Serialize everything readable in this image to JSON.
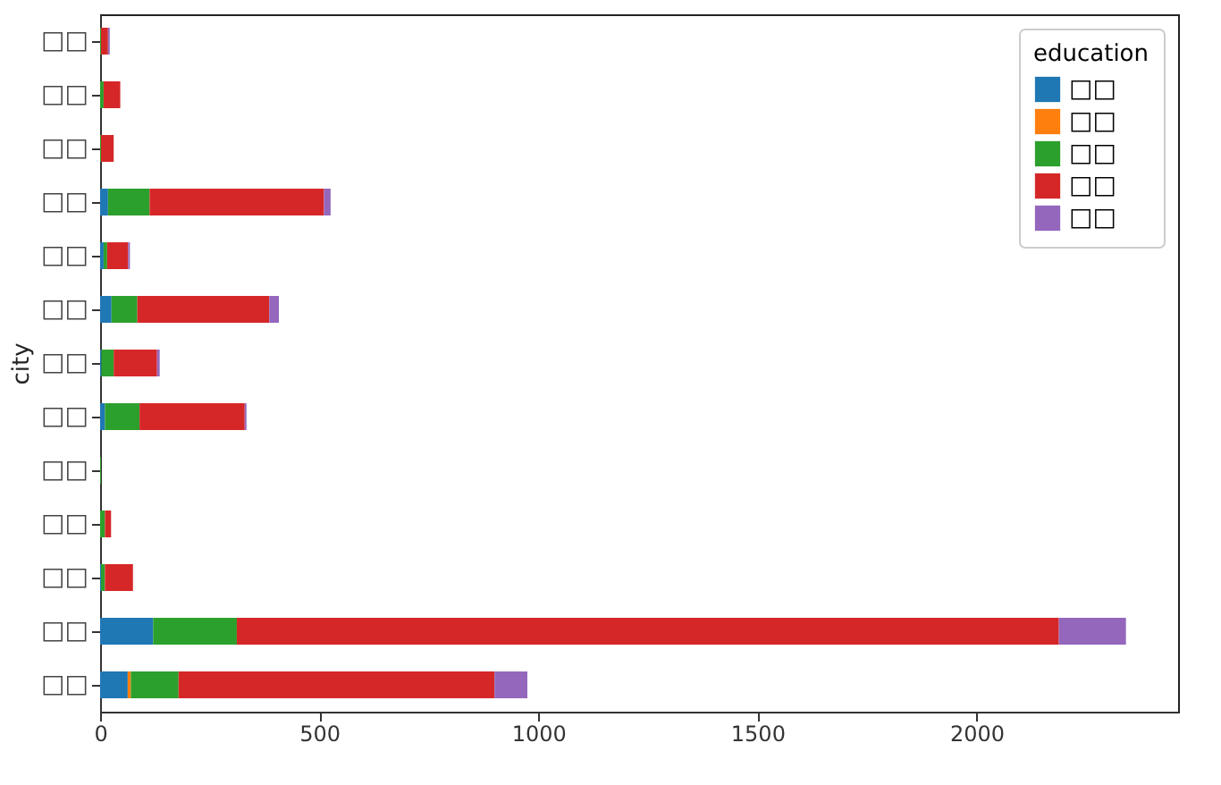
{
  "chart_data": {
    "type": "bar",
    "orientation": "horizontal",
    "stacked": true,
    "ylabel": "city",
    "legend_title": "education",
    "legend": "top right",
    "grid": false,
    "categories": [
      "□□",
      "□□",
      "□□",
      "□□",
      "□□",
      "□□",
      "□□",
      "□□",
      "□□",
      "□□",
      "□□",
      "□□",
      "□□"
    ],
    "xlim": [
      0,
      2460
    ],
    "xticks": [
      0,
      500,
      1000,
      1500,
      2000
    ],
    "series": [
      {
        "name": "□□",
        "color": "#1f77b4",
        "values": [
          0,
          0,
          0,
          18,
          8,
          26,
          3,
          11,
          0,
          0,
          2,
          121,
          63
        ]
      },
      {
        "name": "□□",
        "color": "#ff7f0e",
        "values": [
          0,
          0,
          0,
          0,
          0,
          0,
          0,
          0,
          0,
          0,
          0,
          0,
          7
        ]
      },
      {
        "name": "□□",
        "color": "#2ca02c",
        "values": [
          2,
          8,
          2,
          95,
          8,
          59,
          28,
          79,
          2,
          11,
          9,
          191,
          109
        ]
      },
      {
        "name": "□□",
        "color": "#d62728",
        "values": [
          16,
          38,
          29,
          398,
          48,
          301,
          99,
          240,
          0,
          14,
          64,
          1876,
          721
        ]
      },
      {
        "name": "□□",
        "color": "#9467bd",
        "values": [
          4,
          0,
          0,
          15,
          4,
          22,
          6,
          4,
          0,
          0,
          0,
          153,
          75
        ]
      }
    ]
  }
}
